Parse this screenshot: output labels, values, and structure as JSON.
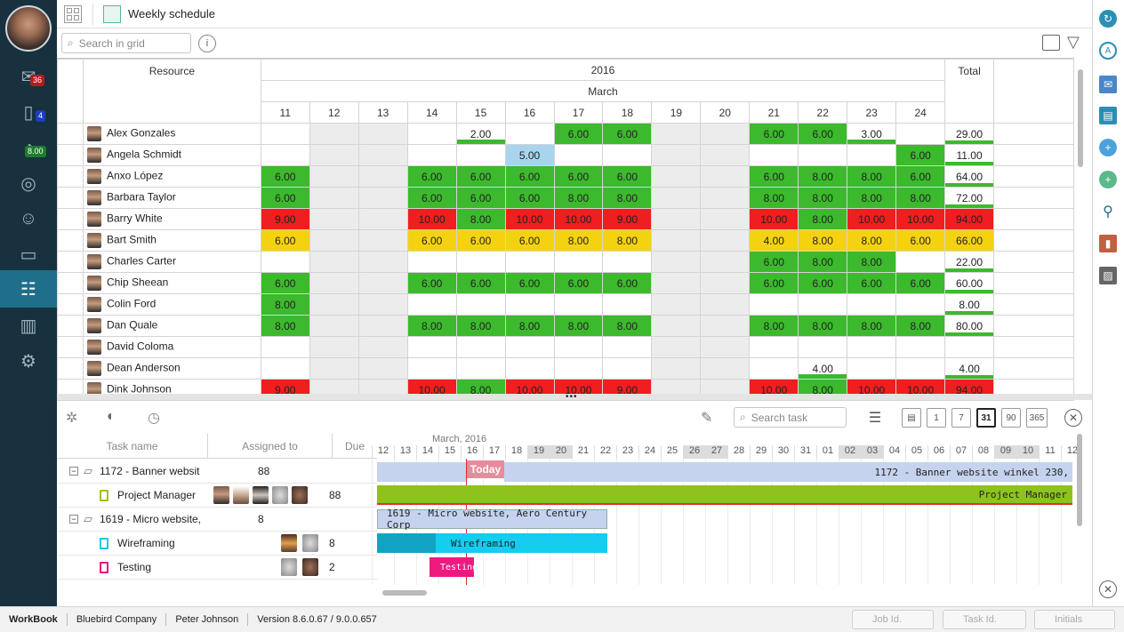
{
  "app": {
    "title": "Weekly schedule"
  },
  "nav": {
    "badge_inbox": "36",
    "badge_tasks": "4",
    "badge_time": "8.00"
  },
  "search": {
    "placeholder": "Search in grid"
  },
  "grid": {
    "resource_header": "Resource",
    "year": "2016",
    "month": "March",
    "total_header": "Total",
    "days": [
      "11",
      "12",
      "13",
      "14",
      "15",
      "16",
      "17",
      "18",
      "19",
      "20",
      "21",
      "22",
      "23",
      "24"
    ],
    "rows": [
      {
        "name": "Alex Gonzales",
        "cells": [
          "",
          "",
          "",
          "",
          "2.00",
          "",
          "6.00",
          "6.00",
          "",
          "",
          "6.00",
          "6.00",
          "3.00",
          ""
        ],
        "colors": [
          "",
          "",
          "",
          "",
          "g",
          "",
          "g",
          "g",
          "",
          "",
          "g",
          "g",
          "g",
          ""
        ],
        "total": "29.00"
      },
      {
        "name": "Angela Schmidt",
        "cells": [
          "",
          "",
          "",
          "",
          "",
          "5.00",
          "",
          "",
          "",
          "",
          "",
          "",
          "",
          "6.00"
        ],
        "colors": [
          "",
          "",
          "",
          "",
          "",
          "lb",
          "",
          "",
          "",
          "",
          "",
          "",
          "",
          "g"
        ],
        "total": "11.00"
      },
      {
        "name": "Anxo López",
        "cells": [
          "6.00",
          "",
          "",
          "6.00",
          "6.00",
          "6.00",
          "6.00",
          "6.00",
          "",
          "",
          "6.00",
          "8.00",
          "8.00",
          "6.00"
        ],
        "colors": [
          "g",
          "",
          "",
          "g",
          "g",
          "g",
          "g",
          "g",
          "",
          "",
          "g",
          "g",
          "g",
          "g"
        ],
        "total": "64.00"
      },
      {
        "name": "Barbara Taylor",
        "cells": [
          "6.00",
          "",
          "",
          "6.00",
          "6.00",
          "6.00",
          "8.00",
          "8.00",
          "",
          "",
          "8.00",
          "8.00",
          "8.00",
          "8.00"
        ],
        "colors": [
          "g",
          "",
          "",
          "g",
          "g",
          "g",
          "g",
          "g",
          "",
          "",
          "g",
          "g",
          "g",
          "g"
        ],
        "total": "72.00"
      },
      {
        "name": "Barry White",
        "cells": [
          "9.00",
          "",
          "",
          "10.00",
          "8.00",
          "10.00",
          "10.00",
          "9.00",
          "",
          "",
          "10.00",
          "8.00",
          "10.00",
          "10.00"
        ],
        "colors": [
          "r",
          "",
          "",
          "r",
          "g",
          "r",
          "r",
          "r",
          "",
          "",
          "r",
          "g",
          "r",
          "r"
        ],
        "total": "94.00"
      },
      {
        "name": "Bart Smith",
        "cells": [
          "6.00",
          "",
          "",
          "6.00",
          "6.00",
          "6.00",
          "8.00",
          "8.00",
          "",
          "",
          "4.00",
          "8.00",
          "8.00",
          "6.00"
        ],
        "colors": [
          "y",
          "",
          "",
          "y",
          "y",
          "y",
          "y",
          "y",
          "",
          "",
          "y",
          "y",
          "y",
          "y"
        ],
        "total": "66.00"
      },
      {
        "name": "Charles Carter",
        "cells": [
          "",
          "",
          "",
          "",
          "",
          "",
          "",
          "",
          "",
          "",
          "6.00",
          "8.00",
          "8.00",
          ""
        ],
        "colors": [
          "",
          "",
          "",
          "",
          "",
          "",
          "",
          "",
          "",
          "",
          "g",
          "g",
          "g",
          ""
        ],
        "total": "22.00"
      },
      {
        "name": "Chip Sheean",
        "cells": [
          "6.00",
          "",
          "",
          "6.00",
          "6.00",
          "6.00",
          "6.00",
          "6.00",
          "",
          "",
          "6.00",
          "6.00",
          "6.00",
          "6.00"
        ],
        "colors": [
          "g",
          "",
          "",
          "g",
          "g",
          "g",
          "g",
          "g",
          "",
          "",
          "g",
          "g",
          "g",
          "g"
        ],
        "total": "60.00"
      },
      {
        "name": "Colin Ford",
        "cells": [
          "8.00",
          "",
          "",
          "",
          "",
          "",
          "",
          "",
          "",
          "",
          "",
          "",
          "",
          ""
        ],
        "colors": [
          "g",
          "",
          "",
          "",
          "",
          "",
          "",
          "",
          "",
          "",
          "",
          "",
          "",
          ""
        ],
        "total": "8.00"
      },
      {
        "name": "Dan Quale",
        "cells": [
          "8.00",
          "",
          "",
          "8.00",
          "8.00",
          "8.00",
          "8.00",
          "8.00",
          "",
          "",
          "8.00",
          "8.00",
          "8.00",
          "8.00"
        ],
        "colors": [
          "g",
          "",
          "",
          "g",
          "g",
          "g",
          "g",
          "g",
          "",
          "",
          "g",
          "g",
          "g",
          "g"
        ],
        "total": "80.00"
      },
      {
        "name": "David Coloma",
        "cells": [
          "",
          "",
          "",
          "",
          "",
          "",
          "",
          "",
          "",
          "",
          "",
          "",
          "",
          ""
        ],
        "colors": [
          "",
          "",
          "",
          "",
          "",
          "",
          "",
          "",
          "",
          "",
          "",
          "",
          "",
          ""
        ],
        "total": ""
      },
      {
        "name": "Dean Anderson",
        "cells": [
          "",
          "",
          "",
          "",
          "",
          "",
          "",
          "",
          "",
          "",
          "",
          "4.00",
          "",
          ""
        ],
        "colors": [
          "",
          "",
          "",
          "",
          "",
          "",
          "",
          "",
          "",
          "",
          "",
          "g",
          "",
          ""
        ],
        "total": "4.00"
      },
      {
        "name": "Dink Johnson",
        "cells": [
          "9.00",
          "",
          "",
          "10.00",
          "8.00",
          "10.00",
          "10.00",
          "9.00",
          "",
          "",
          "10.00",
          "8.00",
          "10.00",
          "10.00"
        ],
        "colors": [
          "r",
          "",
          "",
          "r",
          "g",
          "r",
          "r",
          "r",
          "",
          "",
          "r",
          "g",
          "r",
          "r"
        ],
        "total": "94.00"
      }
    ]
  },
  "tasks": {
    "search_placeholder": "Search task",
    "col_task": "Task name",
    "col_assigned": "Assigned to",
    "col_due": "Due",
    "view_buttons": [
      "1",
      "7",
      "31",
      "90",
      "365"
    ],
    "rows": [
      {
        "name": "1172 - Banner websit",
        "due": "88",
        "type": "folder"
      },
      {
        "name": "Project Manager",
        "due": "88",
        "type": "task-green"
      },
      {
        "name": "1619 - Micro website,",
        "due": "8",
        "type": "folder"
      },
      {
        "name": "Wireframing",
        "due": "8",
        "type": "task-cyan"
      },
      {
        "name": "Testing",
        "due": "2",
        "type": "task-pink"
      }
    ]
  },
  "gantt": {
    "month_label": "March, 2016",
    "days": [
      "12",
      "13",
      "14",
      "15",
      "16",
      "17",
      "18",
      "19",
      "20",
      "21",
      "22",
      "23",
      "24",
      "25",
      "26",
      "27",
      "28",
      "29",
      "30",
      "31",
      "01",
      "02",
      "03",
      "04",
      "05",
      "06",
      "07",
      "08",
      "09",
      "10",
      "11",
      "12"
    ],
    "today_label": "Today",
    "bars": {
      "banner": "1172 - Banner website winkel 230,",
      "pm": "Project Manager",
      "micro": "1619 - Micro website, Aero Century Corp",
      "wire": "Wireframing",
      "testing": "Testing"
    }
  },
  "status": {
    "app": "WorkBook",
    "company": "Bluebird Company",
    "user": "Peter Johnson",
    "version": "Version 8.6.0.67 / 9.0.0.657",
    "job_id": "Job Id.",
    "task_id": "Task Id.",
    "initials": "Initials"
  },
  "colors": {
    "green": "#3cb92d",
    "red": "#f01e1e",
    "yellow": "#f5d20f",
    "sidebar": "#17313f",
    "accent": "#1f6f8a"
  }
}
